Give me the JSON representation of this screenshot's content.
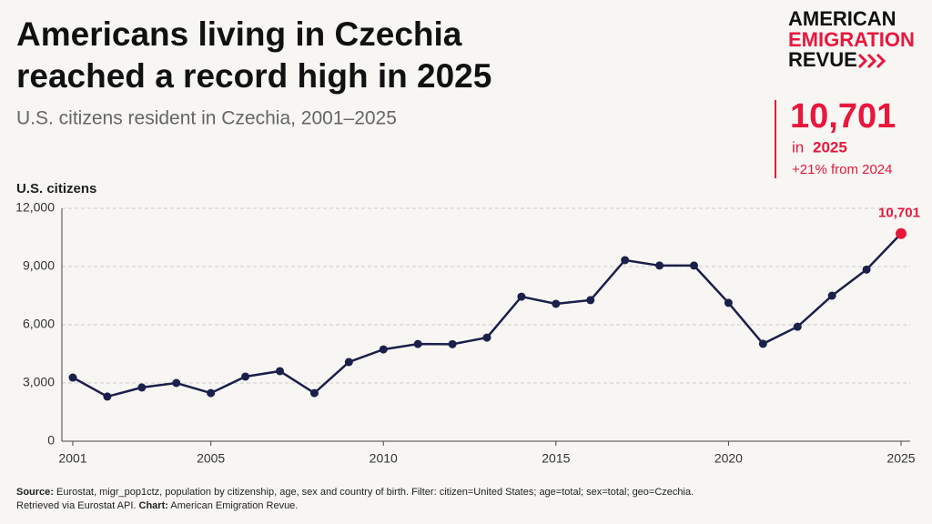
{
  "chart_data": {
    "type": "line",
    "title": [
      "Americans living in Czechia",
      "reached a record high in 2025"
    ],
    "subtitle": "U.S. citizens resident in Czechia, 2001–2025",
    "y_label": "U.S. citizens",
    "x": [
      2001,
      2002,
      2003,
      2004,
      2005,
      2006,
      2007,
      2008,
      2009,
      2010,
      2011,
      2012,
      2013,
      2014,
      2015,
      2016,
      2017,
      2018,
      2019,
      2020,
      2021,
      2022,
      2023,
      2024,
      2025
    ],
    "values": [
      3280,
      2300,
      2770,
      3000,
      2480,
      3330,
      3610,
      2480,
      4080,
      4730,
      5010,
      5000,
      5340,
      7450,
      7080,
      7270,
      9330,
      9050,
      9050,
      7130,
      5020,
      5900,
      7500,
      8844,
      10701
    ],
    "value_labels": [
      null,
      null,
      null,
      null,
      null,
      null,
      null,
      null,
      null,
      null,
      null,
      null,
      null,
      null,
      null,
      null,
      null,
      null,
      null,
      null,
      null,
      null,
      null,
      null,
      "10,701"
    ],
    "color": "#1b1f4a",
    "highlight_color": "#e8173c",
    "xlim": [
      2001,
      2025
    ],
    "xticks": [
      2001,
      2005,
      2010,
      2015,
      2020,
      2025
    ],
    "ylim": [
      0,
      12000
    ],
    "yticks": [
      0,
      {
        "value": 3000,
        "label": "3,000"
      },
      {
        "value": 6000,
        "label": "6,000"
      },
      {
        "value": 9000,
        "label": "9,000"
      },
      {
        "value": 12000,
        "label": "12,000"
      }
    ],
    "grid": true
  },
  "logo": [
    "AMERICAN",
    "EMIGRATION",
    "REVUE"
  ],
  "callout": {
    "value": "10,701",
    "prefix": "in",
    "year": "2025",
    "change": "+21% from 2024"
  },
  "source": {
    "label1": "Source:",
    "text1": " Eurostat, migr_pop1ctz, population by citizenship, age, sex and country of birth. Filter: citizen=United States; age=total; sex=total; geo=Czechia.",
    "text2": "Retrieved via Eurostat API. ",
    "label2": "Chart:",
    "text3": " American Emigration Revue."
  }
}
